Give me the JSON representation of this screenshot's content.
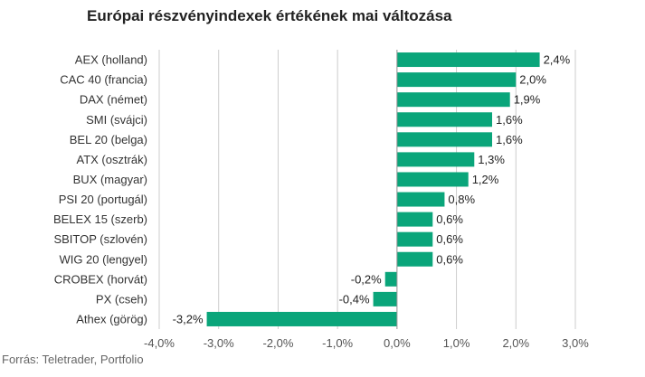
{
  "title": "Európai részvényindexek értékének mai változása",
  "source": "Forrás: Teletrader, Portfolio",
  "colors": {
    "bar": "#0aa57a",
    "grid": "#cccccc",
    "text": "#333333",
    "tick": "#555555"
  },
  "chart_data": {
    "type": "bar",
    "orientation": "horizontal",
    "categories": [
      "AEX (holland)",
      "CAC 40 (francia)",
      "DAX (német)",
      "SMI (svájci)",
      "BEL 20 (belga)",
      "ATX (osztrák)",
      "BUX (magyar)",
      "PSI 20 (portugál)",
      "BELEX 15 (szerb)",
      "SBITOP (szlovén)",
      "WIG 20 (lengyel)",
      "CROBEX (horvát)",
      "PX (cseh)",
      "Athex (görög)"
    ],
    "values": [
      2.4,
      2.0,
      1.9,
      1.6,
      1.6,
      1.3,
      1.2,
      0.8,
      0.6,
      0.6,
      0.6,
      -0.2,
      -0.4,
      -3.2
    ],
    "data_labels": [
      "2,4%",
      "2,0%",
      "1,9%",
      "1,6%",
      "1,6%",
      "1,3%",
      "1,2%",
      "0,8%",
      "0,6%",
      "0,6%",
      "0,6%",
      "-0,2%",
      "-0,4%",
      "-3,2%"
    ],
    "xlim": [
      -4.0,
      3.0
    ],
    "xticks": [
      -4.0,
      -3.0,
      -2.0,
      -1.0,
      0.0,
      1.0,
      2.0,
      3.0
    ],
    "xtick_labels": [
      "-4,0%",
      "-3,0%",
      "-2,0%",
      "-1,0%",
      "0,0%",
      "1,0%",
      "2,0%",
      "3,0%"
    ],
    "grid": true,
    "legend": "none"
  }
}
